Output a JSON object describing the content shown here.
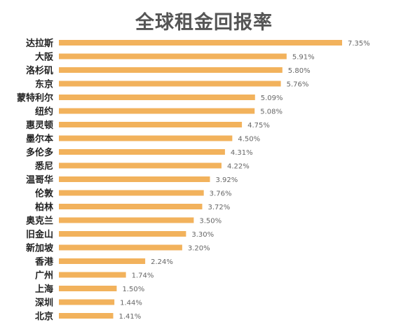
{
  "chart_data": {
    "type": "bar",
    "orientation": "horizontal",
    "title": "全球租金回报率",
    "xlabel": "",
    "ylabel": "",
    "categories": [
      "达拉斯",
      "大阪",
      "洛杉矶",
      "东京",
      "蒙特利尔",
      "纽约",
      "惠灵顿",
      "墨尔本",
      "多伦多",
      "悉尼",
      "温哥华",
      "伦敦",
      "柏林",
      "奥克兰",
      "旧金山",
      "新加坡",
      "香港",
      "广州",
      "上海",
      "深圳",
      "北京"
    ],
    "values": [
      7.35,
      5.91,
      5.8,
      5.76,
      5.09,
      5.08,
      4.75,
      4.5,
      4.31,
      4.22,
      3.92,
      3.76,
      3.72,
      3.5,
      3.3,
      3.2,
      2.24,
      1.74,
      1.5,
      1.44,
      1.41
    ],
    "value_labels": [
      "7.35%",
      "5.91%",
      "5.80%",
      "5.76%",
      "5.09%",
      "5.08%",
      "4.75%",
      "4.50%",
      "4.31%",
      "4.22%",
      "3.92%",
      "3.76%",
      "3.72%",
      "3.50%",
      "3.30%",
      "3.20%",
      "2.24%",
      "1.74%",
      "1.50%",
      "1.44%",
      "1.41%"
    ],
    "xlim": [
      0,
      7.35
    ],
    "grid": false,
    "bar_color": "#f2b25c"
  }
}
